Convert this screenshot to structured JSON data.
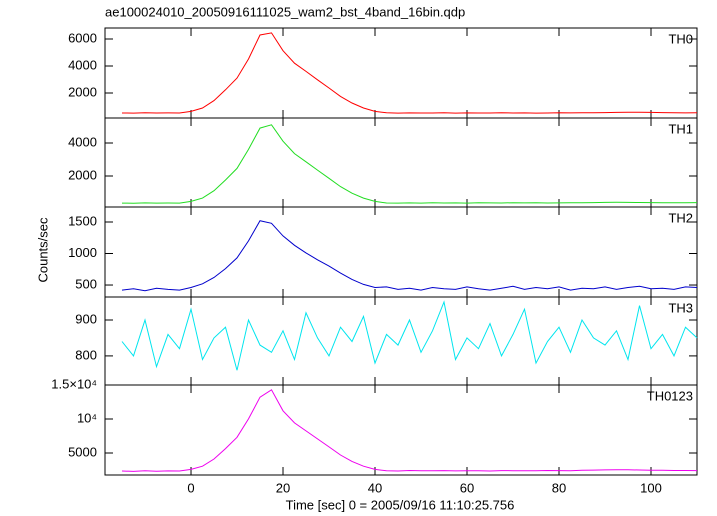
{
  "title": "ae100024010_20050916111025_wam2_bst_4band_16bin.qdp",
  "y_label": "Counts/sec",
  "x_label": "Time [sec] 0 = 2005/09/16 11:10:25.756",
  "xlim": [
    -18.7,
    110
  ],
  "xticks": [
    0,
    20,
    40,
    60,
    80,
    100
  ],
  "x": [
    -15,
    -12.5,
    -10,
    -7.5,
    -5,
    -2.5,
    0,
    2.5,
    5,
    7.5,
    10,
    12.5,
    15,
    17.5,
    20,
    22.5,
    25,
    27.5,
    30,
    32.5,
    35,
    37.5,
    40,
    42.5,
    45,
    47.5,
    50,
    52.5,
    55,
    57.5,
    60,
    62.5,
    65,
    67.5,
    70,
    72.5,
    75,
    77.5,
    80,
    82.5,
    85,
    87.5,
    90,
    92.5,
    95,
    97.5,
    100,
    102.5,
    105,
    107.5,
    110
  ],
  "chart_data": [
    {
      "type": "line",
      "label": "TH0",
      "color": "#ff0000",
      "ylim": [
        148,
        6815
      ],
      "yticks": [
        2000,
        4000,
        6000
      ],
      "values": [
        520,
        510,
        530,
        515,
        525,
        520,
        640,
        890,
        1440,
        2240,
        3100,
        4520,
        6300,
        6450,
        5130,
        4210,
        3600,
        2980,
        2370,
        1750,
        1260,
        890,
        640,
        530,
        510,
        525,
        515,
        520,
        535,
        510,
        525,
        520,
        515,
        530,
        520,
        525,
        510,
        520,
        535,
        525,
        540,
        530,
        545,
        560,
        575,
        570,
        560,
        545,
        535,
        525,
        530
      ]
    },
    {
      "type": "line",
      "label": "TH1",
      "color": "#22dd22",
      "ylim": [
        121,
        5515
      ],
      "yticks": [
        2000,
        4000
      ],
      "values": [
        360,
        350,
        370,
        355,
        365,
        360,
        460,
        660,
        1110,
        1760,
        2460,
        3610,
        4900,
        5100,
        4110,
        3360,
        2860,
        2360,
        1860,
        1360,
        960,
        660,
        460,
        365,
        355,
        370,
        360,
        375,
        365,
        370,
        360,
        375,
        370,
        365,
        380,
        370,
        375,
        365,
        370,
        380,
        375,
        390,
        400,
        405,
        400,
        395,
        385,
        380,
        375,
        380,
        385
      ]
    },
    {
      "type": "line",
      "label": "TH2",
      "color": "#0000cc",
      "ylim": [
        310,
        1738
      ],
      "yticks": [
        500,
        1000,
        1500
      ],
      "values": [
        420,
        440,
        410,
        450,
        430,
        420,
        460,
        520,
        620,
        760,
        930,
        1200,
        1520,
        1480,
        1280,
        1130,
        1010,
        900,
        800,
        690,
        590,
        510,
        460,
        470,
        430,
        450,
        420,
        460,
        440,
        430,
        470,
        440,
        420,
        450,
        480,
        430,
        460,
        440,
        470,
        420,
        450,
        440,
        470,
        430,
        460,
        480,
        440,
        450,
        430,
        470,
        460
      ]
    },
    {
      "type": "line",
      "label": "TH3",
      "color": "#00e5ee",
      "ylim": [
        719,
        964
      ],
      "yticks": [
        800,
        900
      ],
      "values": [
        840,
        800,
        900,
        770,
        860,
        820,
        930,
        790,
        850,
        880,
        760,
        900,
        830,
        810,
        870,
        790,
        920,
        850,
        800,
        880,
        840,
        910,
        780,
        860,
        830,
        900,
        810,
        870,
        950,
        790,
        850,
        820,
        890,
        800,
        860,
        930,
        780,
        840,
        880,
        810,
        900,
        850,
        830,
        870,
        790,
        940,
        820,
        860,
        800,
        880,
        850
      ]
    },
    {
      "type": "line",
      "label": "TH0123",
      "color": "#ee00ee",
      "ylim": [
        1765,
        15000
      ],
      "yticks": [
        5000,
        {
          "value": 10000,
          "label": "10⁴"
        },
        {
          "value": 15000,
          "label": "1.5×10⁴"
        }
      ],
      "values": [
        2350,
        2300,
        2400,
        2330,
        2370,
        2350,
        2590,
        3060,
        4120,
        5650,
        7310,
        10020,
        13200,
        14300,
        11200,
        9430,
        8250,
        7070,
        5890,
        4710,
        3770,
        3060,
        2590,
        2400,
        2350,
        2420,
        2380,
        2390,
        2410,
        2370,
        2400,
        2380,
        2360,
        2410,
        2390,
        2400,
        2380,
        2420,
        2410,
        2390,
        2450,
        2480,
        2520,
        2550,
        2530,
        2500,
        2470,
        2450,
        2430,
        2420,
        2410
      ]
    }
  ]
}
